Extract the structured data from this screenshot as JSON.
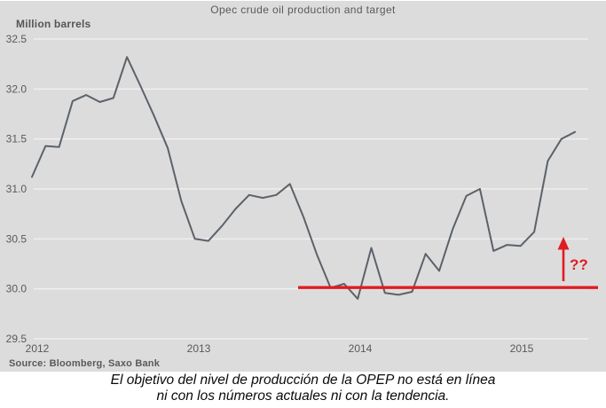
{
  "chart_data": {
    "type": "line",
    "title": "Opec crude oil production and target",
    "ylabel": "Million barrels",
    "xlabel": "",
    "source": "Source: Bloomberg, Saxo Bank",
    "x_unit": "month",
    "x_start": "2012-01",
    "x_end": "2015-05",
    "x_tick_labels": [
      "2012",
      "2013",
      "2014",
      "2015"
    ],
    "ylim": [
      29.5,
      32.5
    ],
    "y_ticks": [
      32.5,
      32.0,
      31.5,
      31.0,
      30.5,
      30.0,
      29.5
    ],
    "grid": true,
    "legend": "none",
    "background_color": "#dcdcdc",
    "gridline_color": "#efefef",
    "text_color": "#595959",
    "series": [
      {
        "name": "Opec crude oil production",
        "color": "#5c6269",
        "values": [
          31.12,
          31.43,
          31.42,
          31.88,
          31.94,
          31.87,
          31.91,
          32.32,
          32.03,
          31.73,
          31.41,
          30.88,
          30.5,
          30.48,
          30.63,
          30.8,
          30.94,
          30.91,
          30.94,
          31.05,
          30.72,
          30.34,
          30.01,
          30.05,
          29.9,
          30.41,
          29.96,
          29.94,
          29.97,
          30.35,
          30.18,
          30.6,
          30.93,
          31.0,
          30.38,
          30.44,
          30.43,
          30.57,
          31.28,
          31.5,
          31.57
        ]
      }
    ],
    "target_line": {
      "name": "Opec production target",
      "value": 30.0,
      "start": "2013-09",
      "color": "#e11b22"
    },
    "annotation": {
      "text": "??",
      "type": "red-up-arrow",
      "color": "#e11b22"
    }
  },
  "caption": {
    "line1": "El objetivo del nivel de producción de la OPEP no está en línea",
    "line2": "ni con los números actuales ni con la tendencia."
  }
}
